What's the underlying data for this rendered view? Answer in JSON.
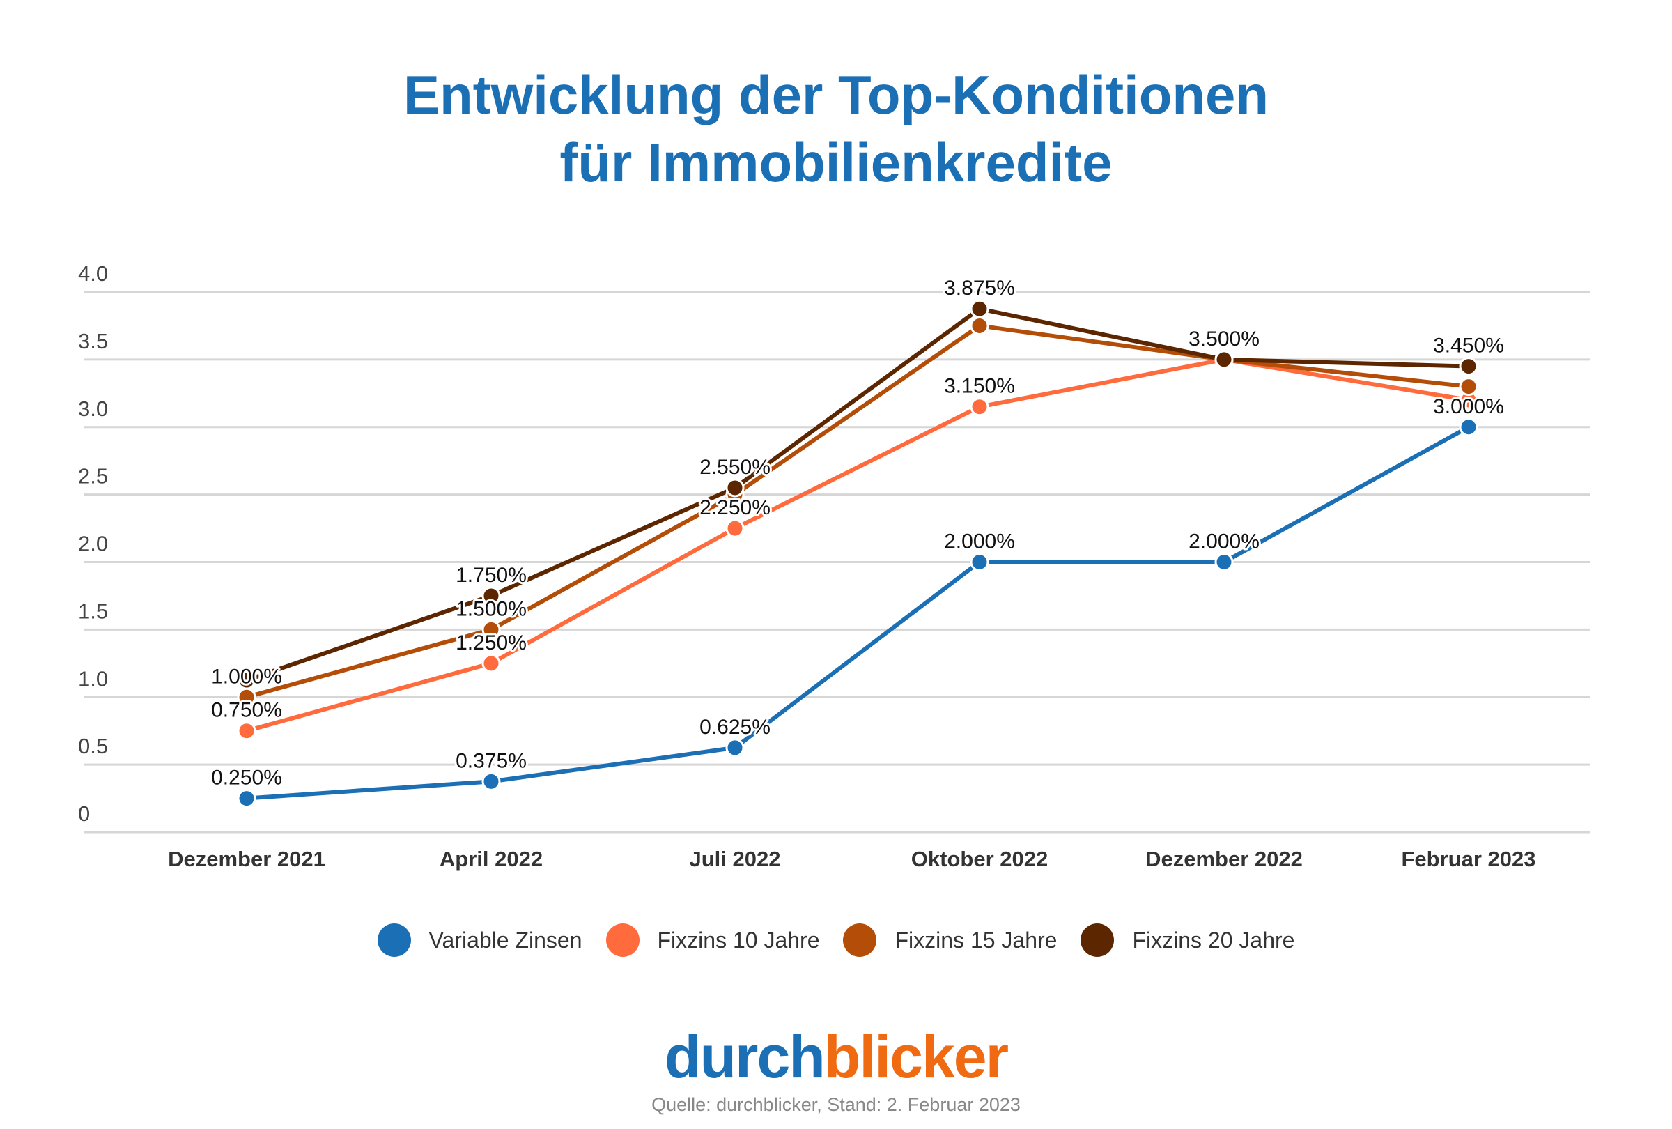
{
  "title": {
    "line1": "Entwicklung der Top-Konditionen",
    "line2": "für Immobilienkredite"
  },
  "chart_data": {
    "type": "line",
    "categories": [
      "Dezember 2021",
      "April 2022",
      "Juli 2022",
      "Oktober 2022",
      "Dezember 2022",
      "Februar 2023"
    ],
    "ylim": [
      0,
      4
    ],
    "yticks": [
      0,
      0.5,
      1.0,
      1.5,
      2.0,
      2.5,
      3.0,
      3.5,
      4.0
    ],
    "ytick_labels": [
      "0",
      "0.5",
      "1.0",
      "1.5",
      "2.0",
      "2.5",
      "3.0",
      "3.5",
      "4.0"
    ],
    "grid": true,
    "legend": "bottom",
    "series": [
      {
        "name": "Variable Zinsen",
        "color": "#1a6fb5",
        "values": [
          0.25,
          0.375,
          0.625,
          2.0,
          2.0,
          3.0
        ],
        "labels": [
          "0.250%",
          "0.375%",
          "0.625%",
          "2.000%",
          "2.000%",
          "3.000%"
        ]
      },
      {
        "name": "Fixzins 10 Jahre",
        "color": "#ff6b3d",
        "values": [
          0.75,
          1.25,
          2.25,
          3.15,
          3.5,
          3.2
        ],
        "labels": [
          "0.750%",
          "1.250%",
          "2.250%",
          "3.150%",
          null,
          null
        ]
      },
      {
        "name": "Fixzins 15 Jahre",
        "color": "#b34d08",
        "values": [
          1.0,
          1.5,
          2.5,
          3.75,
          3.5,
          3.3
        ],
        "labels": [
          "1.000%",
          "1.500%",
          null,
          null,
          null,
          null
        ]
      },
      {
        "name": "Fixzins 20 Jahre",
        "color": "#5c2600",
        "values": [
          1.125,
          1.75,
          2.55,
          3.875,
          3.5,
          3.45
        ],
        "labels": [
          null,
          "1.750%",
          "2.550%",
          "3.875%",
          "3.500%",
          "3.450%"
        ]
      }
    ]
  },
  "logo": {
    "part1": "durch",
    "part2": "blicker",
    "color1": "#1a6fb5",
    "color2": "#f06a12"
  },
  "source": "Quelle: durchblicker, Stand: 2. Februar 2023"
}
